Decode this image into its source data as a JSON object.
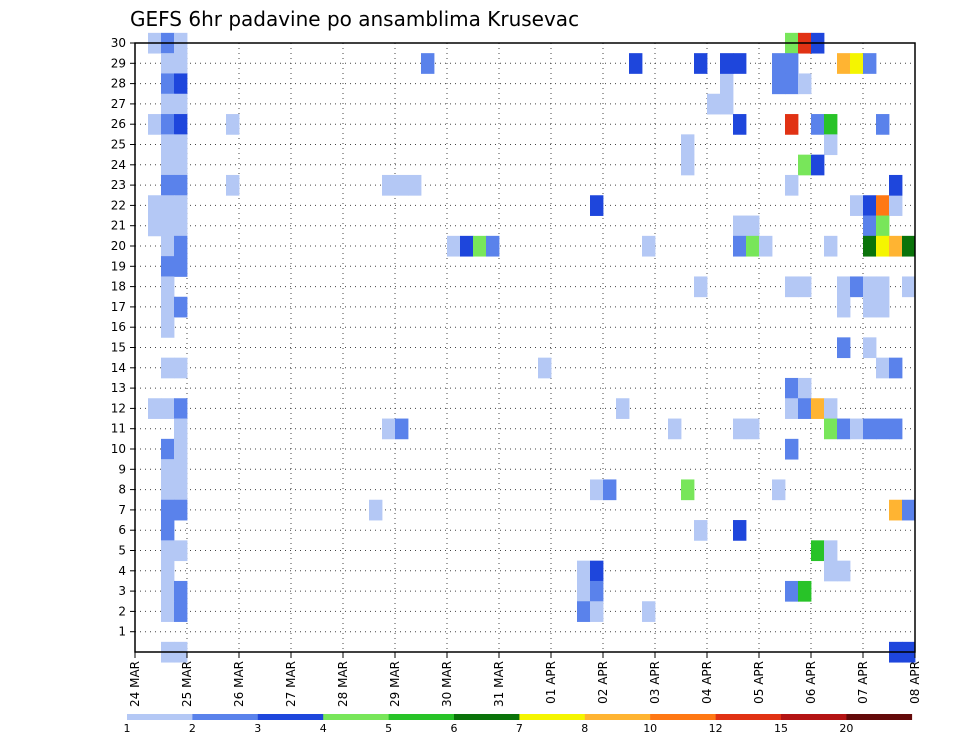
{
  "chart_data": {
    "type": "heatmap",
    "title": "GEFS 6hr padavine po ansamblima Krusevac",
    "y_tick_labels": [
      "1",
      "2",
      "3",
      "4",
      "5",
      "6",
      "7",
      "8",
      "9",
      "10",
      "11",
      "12",
      "13",
      "14",
      "15",
      "16",
      "17",
      "18",
      "19",
      "20",
      "21",
      "22",
      "23",
      "24",
      "25",
      "26",
      "27",
      "28",
      "29",
      "30"
    ],
    "x_tick_labels": [
      "24 MAR",
      "25 MAR",
      "26 MAR",
      "27 MAR",
      "28 MAR",
      "29 MAR",
      "30 MAR",
      "31 MAR",
      "01 APR",
      "02 APR",
      "03 APR",
      "04 APR",
      "05 APR",
      "06 APR",
      "07 APR",
      "08 APR"
    ],
    "grid": true,
    "colorbar": {
      "levels": [
        "1",
        "2",
        "3",
        "4",
        "5",
        "6",
        "7",
        "8",
        "10",
        "12",
        "15",
        "20"
      ],
      "colors": [
        "#b4c8f5",
        "#5a82eb",
        "#1e46dc",
        "#78e65a",
        "#28c328",
        "#0a730a",
        "#f5f500",
        "#ffb432",
        "#ff7814",
        "#e13214",
        "#b41414",
        "#640a0a"
      ]
    },
    "cell_time_step": "6hr",
    "cells": [
      {
        "m": 30,
        "t": "24 MAR 06",
        "c": 1
      },
      {
        "m": 30,
        "t": "24 MAR 12",
        "c": 2
      },
      {
        "m": 30,
        "t": "24 MAR 18",
        "c": 1
      },
      {
        "m": 29,
        "t": "24 MAR 12",
        "c": 1
      },
      {
        "m": 29,
        "t": "24 MAR 18",
        "c": 1
      },
      {
        "m": 28,
        "t": "24 MAR 12",
        "c": 2
      },
      {
        "m": 28,
        "t": "24 MAR 18",
        "c": 3
      },
      {
        "m": 27,
        "t": "24 MAR 12",
        "c": 1
      },
      {
        "m": 27,
        "t": "24 MAR 18",
        "c": 1
      },
      {
        "m": 26,
        "t": "24 MAR 06",
        "c": 1
      },
      {
        "m": 26,
        "t": "24 MAR 12",
        "c": 2
      },
      {
        "m": 26,
        "t": "24 MAR 18",
        "c": 3
      },
      {
        "m": 25,
        "t": "24 MAR 12",
        "c": 1
      },
      {
        "m": 25,
        "t": "24 MAR 18",
        "c": 1
      },
      {
        "m": 24,
        "t": "24 MAR 12",
        "c": 1
      },
      {
        "m": 24,
        "t": "24 MAR 18",
        "c": 1
      },
      {
        "m": 23,
        "t": "24 MAR 12",
        "c": 2
      },
      {
        "m": 23,
        "t": "24 MAR 18",
        "c": 2
      },
      {
        "m": 22,
        "t": "24 MAR 06",
        "c": 1
      },
      {
        "m": 22,
        "t": "24 MAR 12",
        "c": 1
      },
      {
        "m": 22,
        "t": "24 MAR 18",
        "c": 1
      },
      {
        "m": 21,
        "t": "24 MAR 06",
        "c": 1
      },
      {
        "m": 21,
        "t": "24 MAR 12",
        "c": 1
      },
      {
        "m": 21,
        "t": "24 MAR 18",
        "c": 1
      },
      {
        "m": 20,
        "t": "24 MAR 12",
        "c": 1
      },
      {
        "m": 20,
        "t": "24 MAR 18",
        "c": 2
      },
      {
        "m": 19,
        "t": "24 MAR 12",
        "c": 2
      },
      {
        "m": 19,
        "t": "24 MAR 18",
        "c": 2
      },
      {
        "m": 18,
        "t": "24 MAR 12",
        "c": 1
      },
      {
        "m": 17,
        "t": "24 MAR 12",
        "c": 1
      },
      {
        "m": 17,
        "t": "24 MAR 18",
        "c": 2
      },
      {
        "m": 16,
        "t": "24 MAR 12",
        "c": 1
      },
      {
        "m": 14,
        "t": "24 MAR 12",
        "c": 1
      },
      {
        "m": 14,
        "t": "24 MAR 18",
        "c": 1
      },
      {
        "m": 12,
        "t": "24 MAR 06",
        "c": 1
      },
      {
        "m": 12,
        "t": "24 MAR 12",
        "c": 1
      },
      {
        "m": 12,
        "t": "24 MAR 18",
        "c": 2
      },
      {
        "m": 11,
        "t": "24 MAR 18",
        "c": 1
      },
      {
        "m": 10,
        "t": "24 MAR 12",
        "c": 2
      },
      {
        "m": 10,
        "t": "24 MAR 18",
        "c": 1
      },
      {
        "m": 9,
        "t": "24 MAR 12",
        "c": 1
      },
      {
        "m": 9,
        "t": "24 MAR 18",
        "c": 1
      },
      {
        "m": 8,
        "t": "24 MAR 12",
        "c": 1
      },
      {
        "m": 8,
        "t": "24 MAR 18",
        "c": 1
      },
      {
        "m": 7,
        "t": "24 MAR 12",
        "c": 2
      },
      {
        "m": 7,
        "t": "24 MAR 18",
        "c": 2
      },
      {
        "m": 6,
        "t": "24 MAR 12",
        "c": 2
      },
      {
        "m": 5,
        "t": "24 MAR 12",
        "c": 1
      },
      {
        "m": 5,
        "t": "24 MAR 18",
        "c": 1
      },
      {
        "m": 4,
        "t": "24 MAR 12",
        "c": 1
      },
      {
        "m": 3,
        "t": "24 MAR 12",
        "c": 1
      },
      {
        "m": 3,
        "t": "24 MAR 18",
        "c": 2
      },
      {
        "m": 2,
        "t": "24 MAR 12",
        "c": 1
      },
      {
        "m": 2,
        "t": "24 MAR 18",
        "c": 2
      },
      {
        "m": 0,
        "t": "24 MAR 12",
        "c": 1
      },
      {
        "m": 0,
        "t": "24 MAR 18",
        "c": 1
      },
      {
        "m": 26,
        "t": "25 MAR 18",
        "c": 1
      },
      {
        "m": 23,
        "t": "25 MAR 18",
        "c": 1
      },
      {
        "m": 23,
        "t": "28 MAR 18",
        "c": 1
      },
      {
        "m": 23,
        "t": "29 MAR 00",
        "c": 1
      },
      {
        "m": 23,
        "t": "29 MAR 06",
        "c": 1
      },
      {
        "m": 11,
        "t": "28 MAR 18",
        "c": 1
      },
      {
        "m": 11,
        "t": "29 MAR 00",
        "c": 2
      },
      {
        "m": 7,
        "t": "28 MAR 12",
        "c": 1
      },
      {
        "m": 29,
        "t": "29 MAR 12",
        "c": 2
      },
      {
        "m": 20,
        "t": "30 MAR 00",
        "c": 1
      },
      {
        "m": 20,
        "t": "30 MAR 06",
        "c": 3
      },
      {
        "m": 20,
        "t": "30 MAR 12",
        "c": 4
      },
      {
        "m": 20,
        "t": "30 MAR 18",
        "c": 2
      },
      {
        "m": 14,
        "t": "31 MAR 18",
        "c": 1
      },
      {
        "m": 4,
        "t": "01 APR 12",
        "c": 1
      },
      {
        "m": 3,
        "t": "01 APR 12",
        "c": 1
      },
      {
        "m": 2,
        "t": "01 APR 12",
        "c": 2
      },
      {
        "m": 4,
        "t": "01 APR 18",
        "c": 3
      },
      {
        "m": 3,
        "t": "01 APR 18",
        "c": 2
      },
      {
        "m": 2,
        "t": "01 APR 18",
        "c": 1
      },
      {
        "m": 8,
        "t": "01 APR 18",
        "c": 1
      },
      {
        "m": 8,
        "t": "02 APR 00",
        "c": 2
      },
      {
        "m": 22,
        "t": "01 APR 18",
        "c": 3
      },
      {
        "m": 12,
        "t": "02 APR 06",
        "c": 1
      },
      {
        "m": 29,
        "t": "02 APR 12",
        "c": 3
      },
      {
        "m": 20,
        "t": "02 APR 18",
        "c": 1
      },
      {
        "m": 2,
        "t": "02 APR 18",
        "c": 1
      },
      {
        "m": 11,
        "t": "03 APR 06",
        "c": 1
      },
      {
        "m": 25,
        "t": "03 APR 12",
        "c": 1
      },
      {
        "m": 24,
        "t": "03 APR 12",
        "c": 1
      },
      {
        "m": 8,
        "t": "03 APR 12",
        "c": 4
      },
      {
        "m": 29,
        "t": "03 APR 18",
        "c": 3
      },
      {
        "m": 18,
        "t": "03 APR 18",
        "c": 1
      },
      {
        "m": 6,
        "t": "03 APR 18",
        "c": 1
      },
      {
        "m": 27,
        "t": "04 APR 00",
        "c": 1
      },
      {
        "m": 28,
        "t": "04 APR 06",
        "c": 1
      },
      {
        "m": 27,
        "t": "04 APR 06",
        "c": 1
      },
      {
        "m": 29,
        "t": "04 APR 06",
        "c": 3
      },
      {
        "m": 29,
        "t": "04 APR 12",
        "c": 3
      },
      {
        "m": 26,
        "t": "04 APR 12",
        "c": 3
      },
      {
        "m": 6,
        "t": "04 APR 12",
        "c": 3
      },
      {
        "m": 21,
        "t": "04 APR 12",
        "c": 1
      },
      {
        "m": 21,
        "t": "04 APR 18",
        "c": 1
      },
      {
        "m": 20,
        "t": "04 APR 12",
        "c": 2
      },
      {
        "m": 20,
        "t": "04 APR 18",
        "c": 4
      },
      {
        "m": 20,
        "t": "05 APR 00",
        "c": 1
      },
      {
        "m": 11,
        "t": "04 APR 12",
        "c": 1
      },
      {
        "m": 11,
        "t": "04 APR 18",
        "c": 1
      },
      {
        "m": 30,
        "t": "05 APR 12",
        "c": 4
      },
      {
        "m": 30,
        "t": "05 APR 18",
        "c": 10
      },
      {
        "m": 30,
        "t": "06 APR 00",
        "c": 3
      },
      {
        "m": 29,
        "t": "05 APR 06",
        "c": 2
      },
      {
        "m": 29,
        "t": "05 APR 12",
        "c": 2
      },
      {
        "m": 28,
        "t": "05 APR 06",
        "c": 2
      },
      {
        "m": 28,
        "t": "05 APR 12",
        "c": 2
      },
      {
        "m": 28,
        "t": "05 APR 18",
        "c": 1
      },
      {
        "m": 26,
        "t": "05 APR 12",
        "c": 10
      },
      {
        "m": 26,
        "t": "06 APR 00",
        "c": 2
      },
      {
        "m": 26,
        "t": "06 APR 06",
        "c": 5
      },
      {
        "m": 25,
        "t": "06 APR 06",
        "c": 1
      },
      {
        "m": 24,
        "t": "05 APR 18",
        "c": 4
      },
      {
        "m": 24,
        "t": "06 APR 00",
        "c": 3
      },
      {
        "m": 23,
        "t": "05 APR 12",
        "c": 1
      },
      {
        "m": 18,
        "t": "05 APR 12",
        "c": 1
      },
      {
        "m": 18,
        "t": "05 APR 18",
        "c": 1
      },
      {
        "m": 13,
        "t": "05 APR 12",
        "c": 2
      },
      {
        "m": 13,
        "t": "05 APR 18",
        "c": 1
      },
      {
        "m": 12,
        "t": "05 APR 12",
        "c": 1
      },
      {
        "m": 12,
        "t": "05 APR 18",
        "c": 2
      },
      {
        "m": 12,
        "t": "06 APR 00",
        "c": 8
      },
      {
        "m": 12,
        "t": "06 APR 06",
        "c": 1
      },
      {
        "m": 10,
        "t": "05 APR 12",
        "c": 2
      },
      {
        "m": 8,
        "t": "05 APR 06",
        "c": 1
      },
      {
        "m": 5,
        "t": "06 APR 00",
        "c": 5
      },
      {
        "m": 5,
        "t": "06 APR 06",
        "c": 1
      },
      {
        "m": 4,
        "t": "06 APR 06",
        "c": 1
      },
      {
        "m": 4,
        "t": "06 APR 12",
        "c": 1
      },
      {
        "m": 3,
        "t": "05 APR 12",
        "c": 2
      },
      {
        "m": 3,
        "t": "05 APR 18",
        "c": 5
      },
      {
        "m": 29,
        "t": "06 APR 12",
        "c": 8
      },
      {
        "m": 29,
        "t": "06 APR 18",
        "c": 7
      },
      {
        "m": 29,
        "t": "07 APR 00",
        "c": 2
      },
      {
        "m": 26,
        "t": "07 APR 06",
        "c": 2
      },
      {
        "m": 22,
        "t": "06 APR 18",
        "c": 1
      },
      {
        "m": 22,
        "t": "07 APR 00",
        "c": 3
      },
      {
        "m": 22,
        "t": "07 APR 06",
        "c": 9
      },
      {
        "m": 22,
        "t": "07 APR 12",
        "c": 1
      },
      {
        "m": 21,
        "t": "07 APR 00",
        "c": 2
      },
      {
        "m": 21,
        "t": "07 APR 06",
        "c": 4
      },
      {
        "m": 20,
        "t": "06 APR 06",
        "c": 1
      },
      {
        "m": 20,
        "t": "07 APR 00",
        "c": 6
      },
      {
        "m": 20,
        "t": "07 APR 06",
        "c": 7
      },
      {
        "m": 20,
        "t": "07 APR 12",
        "c": 8
      },
      {
        "m": 20,
        "t": "07 APR 18",
        "c": 6
      },
      {
        "m": 23,
        "t": "07 APR 12",
        "c": 3
      },
      {
        "m": 18,
        "t": "06 APR 12",
        "c": 1
      },
      {
        "m": 18,
        "t": "06 APR 18",
        "c": 2
      },
      {
        "m": 18,
        "t": "07 APR 00",
        "c": 1
      },
      {
        "m": 18,
        "t": "07 APR 06",
        "c": 1
      },
      {
        "m": 18,
        "t": "07 APR 18",
        "c": 1
      },
      {
        "m": 17,
        "t": "06 APR 12",
        "c": 1
      },
      {
        "m": 17,
        "t": "07 APR 00",
        "c": 1
      },
      {
        "m": 17,
        "t": "07 APR 06",
        "c": 1
      },
      {
        "m": 15,
        "t": "06 APR 12",
        "c": 2
      },
      {
        "m": 15,
        "t": "07 APR 00",
        "c": 1
      },
      {
        "m": 14,
        "t": "07 APR 06",
        "c": 1
      },
      {
        "m": 14,
        "t": "07 APR 12",
        "c": 2
      },
      {
        "m": 11,
        "t": "06 APR 06",
        "c": 4
      },
      {
        "m": 11,
        "t": "06 APR 12",
        "c": 2
      },
      {
        "m": 11,
        "t": "06 APR 18",
        "c": 1
      },
      {
        "m": 11,
        "t": "07 APR 00",
        "c": 2
      },
      {
        "m": 11,
        "t": "07 APR 06",
        "c": 2
      },
      {
        "m": 11,
        "t": "07 APR 12",
        "c": 2
      },
      {
        "m": 7,
        "t": "07 APR 12",
        "c": 8
      },
      {
        "m": 7,
        "t": "07 APR 18",
        "c": 2
      },
      {
        "m": 0,
        "t": "07 APR 12",
        "c": 3
      },
      {
        "m": 0,
        "t": "07 APR 18",
        "c": 3
      }
    ]
  }
}
